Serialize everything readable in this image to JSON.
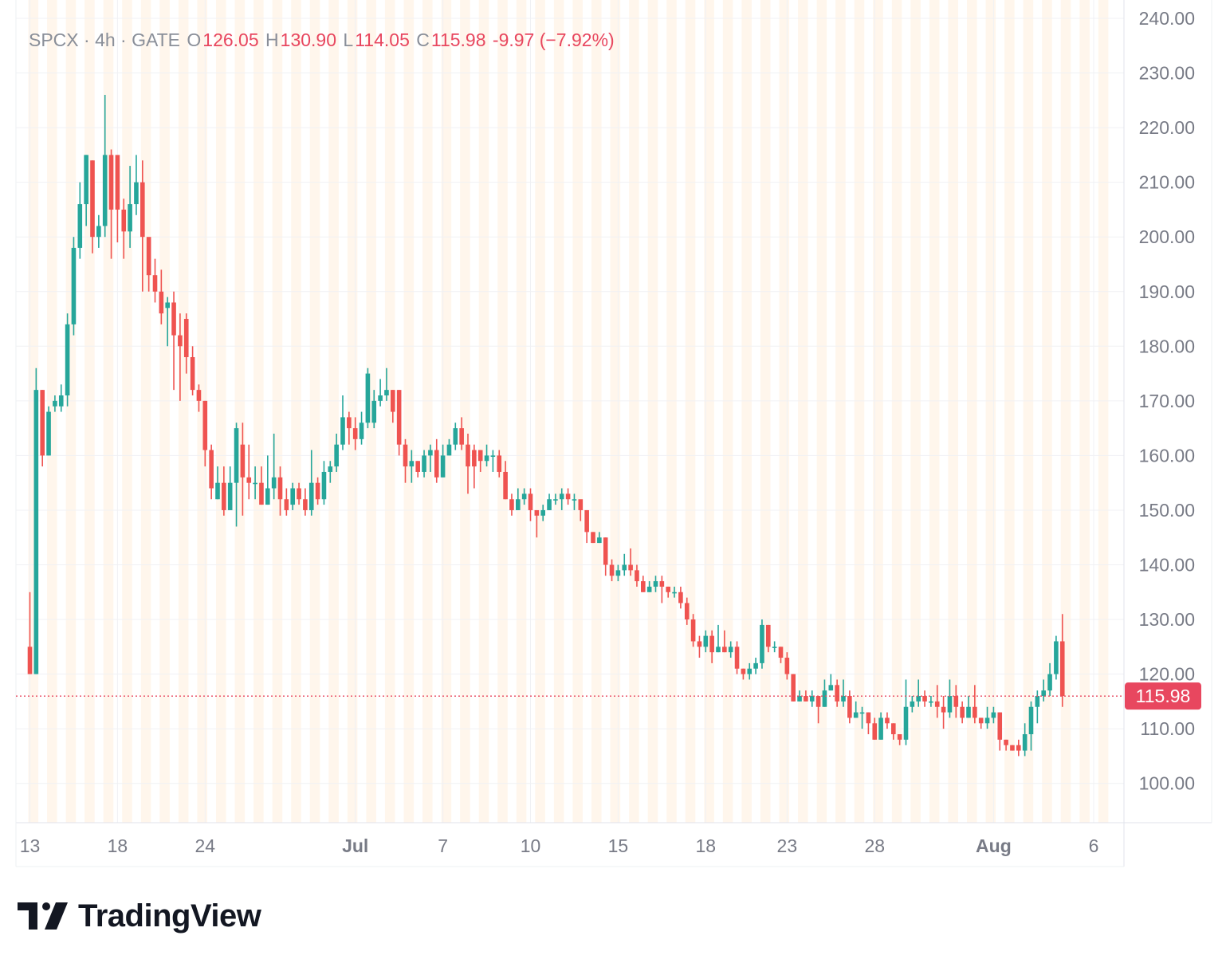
{
  "legend": {
    "symbol": "SPCX · 4h · GATE",
    "open_key": "O",
    "open": "126.05",
    "high_key": "H",
    "high": "130.90",
    "low_key": "L",
    "low": "114.05",
    "close_key": "C",
    "close": "115.98",
    "change": "-9.97 (−7.92%)"
  },
  "price_tag": "115.98",
  "brand": {
    "name": "TradingView",
    "logo_icon": "tradingview-logo-icon"
  },
  "colors": {
    "up": "#26a69a",
    "down": "#ef5350",
    "session_band": "#fff3e6",
    "price_line": "#e8475f"
  },
  "chart_data": {
    "type": "candlestick",
    "timeframe": "4h",
    "ylim": [
      93,
      240
    ],
    "y_ticks": [
      "240.00",
      "230.00",
      "220.00",
      "210.00",
      "200.00",
      "190.00",
      "180.00",
      "170.00",
      "160.00",
      "150.00",
      "140.00",
      "130.00",
      "120.00",
      "110.00",
      "100.00"
    ],
    "y_tick_values": [
      240,
      230,
      220,
      210,
      200,
      190,
      180,
      170,
      160,
      150,
      140,
      130,
      120,
      110,
      100
    ],
    "x_ticks": [
      {
        "label": "13",
        "bar": 0,
        "bold": false
      },
      {
        "label": "18",
        "bar": 14,
        "bold": false
      },
      {
        "label": "24",
        "bar": 28,
        "bold": false
      },
      {
        "label": "Jul",
        "bar": 52,
        "bold": true
      },
      {
        "label": "7",
        "bar": 66,
        "bold": false
      },
      {
        "label": "10",
        "bar": 80,
        "bold": false
      },
      {
        "label": "15",
        "bar": 94,
        "bold": false
      },
      {
        "label": "18",
        "bar": 108,
        "bold": false
      },
      {
        "label": "23",
        "bar": 121,
        "bold": false
      },
      {
        "label": "28",
        "bar": 135,
        "bold": false
      },
      {
        "label": "Aug",
        "bar": 154,
        "bold": true
      },
      {
        "label": "6",
        "bar": 170,
        "bold": false
      }
    ],
    "last_price": 115.98,
    "candles": [
      [
        125,
        120,
        135,
        120
      ],
      [
        120,
        172,
        176,
        120
      ],
      [
        172,
        160,
        172,
        158
      ],
      [
        160,
        168,
        169,
        160
      ],
      [
        169,
        170,
        171,
        168
      ],
      [
        169,
        171,
        173,
        168
      ],
      [
        171,
        184,
        186,
        169
      ],
      [
        184,
        198,
        200,
        182
      ],
      [
        198,
        206,
        210,
        196
      ],
      [
        206,
        215,
        215,
        202
      ],
      [
        214,
        200,
        214,
        197
      ],
      [
        200,
        202,
        204,
        198
      ],
      [
        202,
        215,
        226,
        200
      ],
      [
        215,
        205,
        216,
        196
      ],
      [
        215,
        205,
        214,
        199
      ],
      [
        205,
        201,
        207,
        196
      ],
      [
        201,
        206,
        213,
        198
      ],
      [
        206,
        210,
        215,
        204
      ],
      [
        210,
        200,
        214,
        190
      ],
      [
        200,
        193,
        198,
        190
      ],
      [
        193,
        190,
        196,
        188
      ],
      [
        190,
        186,
        194,
        184
      ],
      [
        187,
        188,
        189,
        180
      ],
      [
        188,
        182,
        190,
        172
      ],
      [
        182,
        180,
        186,
        170
      ],
      [
        185,
        178,
        186,
        175
      ],
      [
        178,
        172,
        180,
        171
      ],
      [
        172,
        170,
        173,
        168
      ],
      [
        170,
        161,
        170,
        158
      ],
      [
        161,
        154,
        162,
        152
      ],
      [
        152,
        155,
        158,
        152
      ],
      [
        155,
        150,
        158,
        149
      ],
      [
        150,
        155,
        158,
        150
      ],
      [
        155,
        165,
        166,
        147
      ],
      [
        162,
        156,
        166,
        149
      ],
      [
        156,
        155,
        162,
        152
      ],
      [
        155,
        155,
        158,
        152
      ],
      [
        155,
        151,
        158,
        151
      ],
      [
        151,
        154,
        160,
        151
      ],
      [
        154,
        156,
        164,
        152
      ],
      [
        156,
        152,
        158,
        149
      ],
      [
        152,
        150,
        154,
        149
      ],
      [
        151,
        154,
        155,
        150
      ],
      [
        154,
        152,
        155,
        151
      ],
      [
        152,
        150,
        154,
        149
      ],
      [
        150,
        155,
        161,
        149
      ],
      [
        155,
        152,
        156,
        151
      ],
      [
        152,
        157,
        159,
        151
      ],
      [
        157,
        158,
        159,
        155
      ],
      [
        158,
        162,
        164,
        157
      ],
      [
        162,
        167,
        171,
        161
      ],
      [
        167,
        165,
        168,
        162
      ],
      [
        165,
        163,
        167,
        161
      ],
      [
        163,
        166,
        168,
        162
      ],
      [
        166,
        175,
        176,
        165
      ],
      [
        166,
        170,
        172,
        165
      ],
      [
        170,
        171,
        174,
        169
      ],
      [
        171,
        172,
        176,
        170
      ],
      [
        172,
        168,
        172,
        166
      ],
      [
        172,
        162,
        172,
        160
      ],
      [
        162,
        158,
        163,
        155
      ],
      [
        158,
        159,
        161,
        155
      ],
      [
        159,
        157,
        159,
        156
      ],
      [
        157,
        160,
        161,
        156
      ],
      [
        160,
        161,
        162,
        157
      ],
      [
        161,
        156,
        163,
        155
      ],
      [
        156,
        160,
        162,
        156
      ],
      [
        160,
        162,
        163,
        160
      ],
      [
        162,
        165,
        166,
        161
      ],
      [
        165,
        162,
        167,
        161
      ],
      [
        162,
        158,
        164,
        153
      ],
      [
        161,
        158,
        162,
        154
      ],
      [
        161,
        159,
        161,
        157
      ],
      [
        159,
        160,
        162,
        158
      ],
      [
        160,
        160,
        161,
        157
      ],
      [
        160,
        157,
        161,
        156
      ],
      [
        157,
        152,
        159,
        152
      ],
      [
        152,
        150,
        153,
        149
      ],
      [
        150,
        152,
        154,
        150
      ],
      [
        152,
        153,
        154,
        151
      ],
      [
        153,
        150,
        154,
        148
      ],
      [
        150,
        149,
        150,
        145
      ],
      [
        149,
        150,
        151,
        148
      ],
      [
        150,
        152,
        153,
        150
      ],
      [
        152,
        152,
        153,
        151
      ],
      [
        152,
        153,
        154,
        150
      ],
      [
        153,
        152,
        154,
        151
      ],
      [
        152,
        152,
        153,
        150
      ],
      [
        152,
        150,
        151,
        148
      ],
      [
        150,
        146,
        150,
        144
      ],
      [
        146,
        144,
        146,
        144
      ],
      [
        144,
        145,
        146,
        144
      ],
      [
        145,
        140,
        145,
        138
      ],
      [
        140,
        138,
        141,
        137
      ],
      [
        138,
        139,
        140,
        137
      ],
      [
        139,
        140,
        142,
        138
      ],
      [
        140,
        139,
        143,
        138
      ],
      [
        139,
        137,
        140,
        136
      ],
      [
        137,
        135,
        138,
        135
      ],
      [
        135,
        136,
        137,
        135
      ],
      [
        136,
        137,
        138,
        135
      ],
      [
        137,
        136,
        138,
        133
      ],
      [
        136,
        135,
        136,
        134
      ],
      [
        135,
        135,
        136,
        134
      ],
      [
        135,
        133,
        136,
        132
      ],
      [
        133,
        130,
        134,
        129
      ],
      [
        130,
        126,
        131,
        125
      ],
      [
        126,
        125,
        127,
        123
      ],
      [
        125,
        127,
        128,
        124
      ],
      [
        127,
        124,
        128,
        122
      ],
      [
        124,
        125,
        129,
        124
      ],
      [
        125,
        124,
        128,
        124
      ],
      [
        124,
        125,
        126,
        123
      ],
      [
        125,
        121,
        126,
        120
      ],
      [
        121,
        120,
        121,
        119
      ],
      [
        120,
        121,
        122,
        119
      ],
      [
        121,
        122,
        123,
        120
      ],
      [
        122,
        129,
        130,
        121
      ],
      [
        129,
        125,
        129,
        124
      ],
      [
        125,
        125,
        126,
        124
      ],
      [
        125,
        123,
        125,
        122
      ],
      [
        123,
        120,
        124,
        119
      ],
      [
        120,
        115,
        120,
        115
      ],
      [
        115,
        116,
        117,
        115
      ],
      [
        116,
        115,
        117,
        115
      ],
      [
        115,
        116,
        117,
        114
      ],
      [
        116,
        114,
        116,
        111
      ],
      [
        114,
        117,
        119,
        114
      ],
      [
        117,
        118,
        120,
        117
      ],
      [
        118,
        115,
        119,
        114
      ],
      [
        115,
        116,
        119,
        114
      ],
      [
        116,
        112,
        117,
        111
      ],
      [
        112,
        113,
        115,
        112
      ],
      [
        113,
        113,
        114,
        110
      ],
      [
        113,
        111,
        113,
        109
      ],
      [
        111,
        108,
        112,
        108
      ],
      [
        108,
        112,
        113,
        108
      ],
      [
        112,
        111,
        113,
        110
      ],
      [
        111,
        109,
        111,
        108
      ],
      [
        109,
        108,
        109,
        107
      ],
      [
        108,
        114,
        119,
        107
      ],
      [
        114,
        115,
        116,
        113
      ],
      [
        115,
        116,
        119,
        114
      ],
      [
        116,
        115,
        117,
        114
      ],
      [
        115,
        115,
        116,
        114
      ],
      [
        115,
        114,
        118,
        112
      ],
      [
        114,
        113,
        116,
        110
      ],
      [
        113,
        116,
        119,
        112
      ],
      [
        116,
        114,
        118,
        112
      ],
      [
        114,
        112,
        115,
        111
      ],
      [
        112,
        114,
        116,
        112
      ],
      [
        114,
        112,
        118,
        111
      ],
      [
        112,
        111,
        112,
        110
      ],
      [
        111,
        112,
        114,
        110
      ],
      [
        112,
        113,
        114,
        111
      ],
      [
        113,
        108,
        113,
        106
      ],
      [
        108,
        107,
        108,
        106
      ],
      [
        107,
        106,
        107,
        106
      ],
      [
        107,
        106,
        108,
        105
      ],
      [
        106,
        109,
        111,
        105
      ],
      [
        109,
        114,
        115,
        106
      ],
      [
        114,
        116,
        117,
        111
      ],
      [
        116,
        117,
        119,
        115
      ],
      [
        117,
        120,
        122,
        116
      ],
      [
        120,
        126,
        127,
        119
      ],
      [
        126,
        116,
        131,
        114
      ]
    ]
  }
}
